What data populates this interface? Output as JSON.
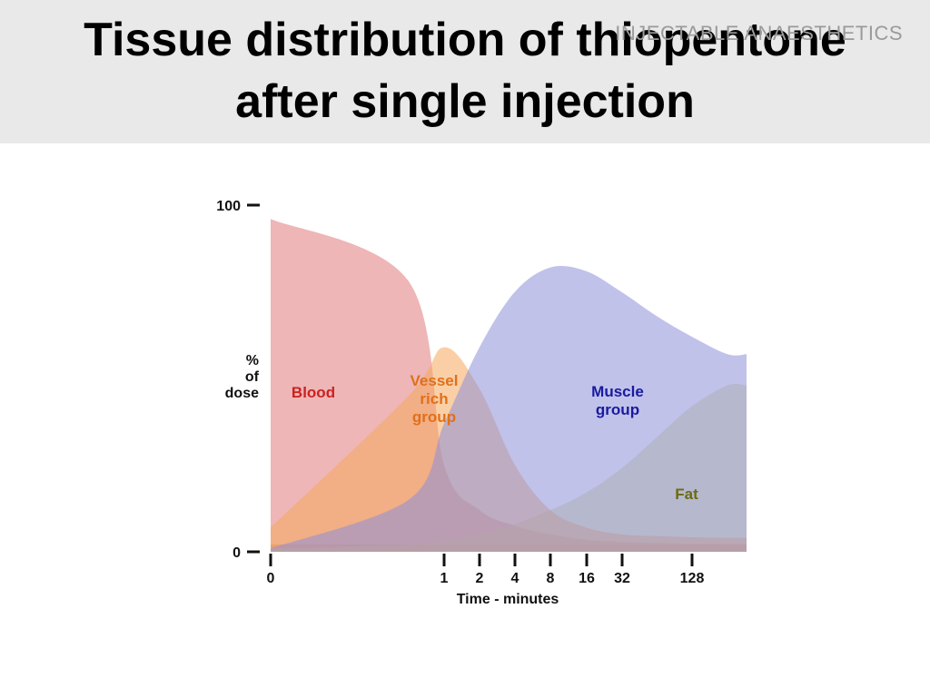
{
  "header": {
    "title_line1": "Tissue distribution of thiopentone",
    "title_line2": "after single injection",
    "watermark": "INJECTABLE ANAESTHETICS"
  },
  "chart_data": {
    "type": "area",
    "ylabel": [
      "%",
      "of",
      "dose"
    ],
    "xlabel": "Time - minutes",
    "ylim": [
      0,
      100
    ],
    "y_ticks": [
      {
        "label": "0",
        "value": 0
      },
      {
        "label": "100",
        "value": 100
      }
    ],
    "x_scale": "log2 (with 0 at origin)",
    "x_ticks": [
      "0",
      "1",
      "2",
      "4",
      "8",
      "16",
      "32",
      "128"
    ],
    "x": [
      0,
      0.5,
      1,
      2,
      4,
      8,
      16,
      32,
      64,
      128,
      256
    ],
    "series": [
      {
        "name": "Blood",
        "color": "#e07a7a",
        "label_color": "#cc2222",
        "values": [
          96,
          78,
          25,
          12,
          7.5,
          5,
          3.5,
          2.8,
          2.5,
          2.3,
          2.2
        ]
      },
      {
        "name": "Fat",
        "color": "#d6d68a",
        "label_color": "#6b6b10",
        "values": [
          1,
          2,
          3,
          5,
          8,
          12,
          17,
          24,
          33,
          42,
          48
        ]
      },
      {
        "name": "Vessel rich group",
        "label_lines": [
          "Vessel",
          "rich",
          "group"
        ],
        "color": "#f5a85c",
        "label_color": "#e0701a",
        "values": [
          7,
          45,
          59,
          47,
          25,
          12,
          7,
          5,
          4.5,
          4.2,
          4
        ]
      },
      {
        "name": "Muscle group",
        "label_lines": [
          "Muscle",
          "group"
        ],
        "color": "#8c90d8",
        "label_color": "#1a1aa0",
        "values": [
          1,
          15,
          37,
          59,
          75,
          82,
          81,
          75,
          68,
          62,
          57
        ]
      }
    ]
  }
}
